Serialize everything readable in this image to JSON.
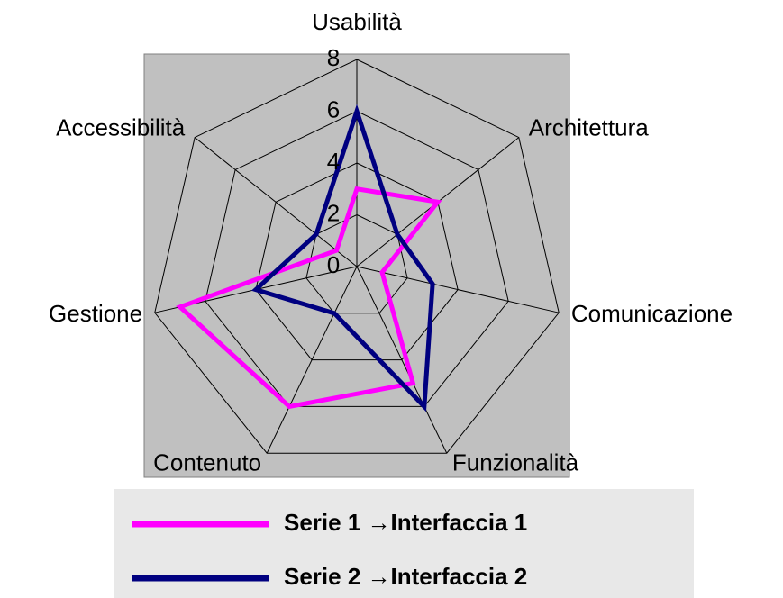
{
  "chart_data": {
    "type": "radar",
    "categories": [
      "Usabilità",
      "Architettura",
      "Comunicazione",
      "Funzionalità",
      "Contenuto",
      "Gestione",
      "Accessibilità"
    ],
    "series": [
      {
        "name": "Serie 1 →Interfaccia 1",
        "color": "#ff00ff",
        "values": [
          3,
          4,
          1,
          5,
          6,
          7,
          1
        ]
      },
      {
        "name": "Serie 2 →Interfaccia 2",
        "color": "#000080",
        "values": [
          6,
          2,
          3,
          6,
          2,
          4,
          2
        ]
      }
    ],
    "ylim": [
      0,
      8
    ],
    "yticks": [
      0,
      2,
      4,
      6,
      8
    ],
    "grid": true
  }
}
